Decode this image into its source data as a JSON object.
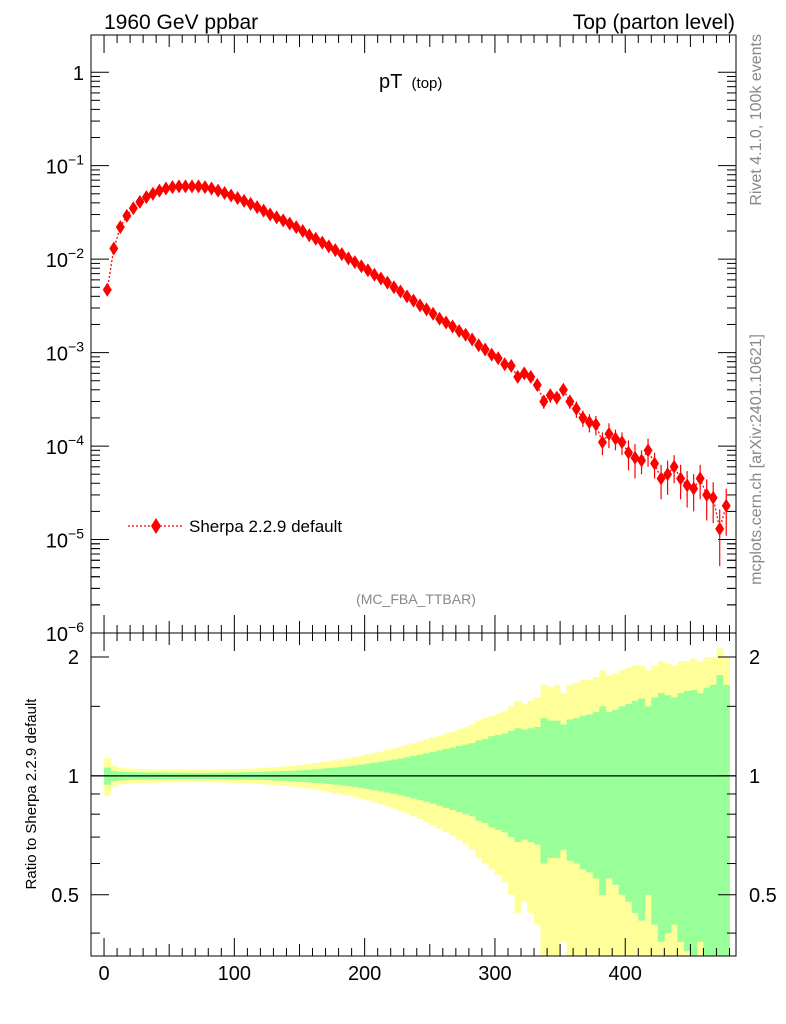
{
  "header": {
    "left": "1960 GeV ppbar",
    "right": "Top (parton level)"
  },
  "side_labels": {
    "rivet": "Rivet 4.1.0,  100k events",
    "mcplots": "mcplots.cern.ch [arXiv:2401.10621]"
  },
  "analysis_label": "(MC_FBA_TTBAR)",
  "colors": {
    "mc": "#ff0000",
    "band_inner": "#99ff99",
    "band_outer": "#ffff99",
    "ref_line": "#000000"
  },
  "chart_data": [
    {
      "type": "scatter",
      "panel": "main",
      "title": "pT",
      "title_sub": "(top)",
      "yscale": "log",
      "xlim": [
        -10,
        485
      ],
      "ylim": [
        1e-06,
        2.5
      ],
      "y_ticks": [
        {
          "value": 1,
          "label": "1",
          "sup": ""
        },
        {
          "value": 0.1,
          "label": "10",
          "sup": "−1"
        },
        {
          "value": 0.01,
          "label": "10",
          "sup": "−2"
        },
        {
          "value": 0.001,
          "label": "10",
          "sup": "−3"
        },
        {
          "value": 0.0001,
          "label": "10",
          "sup": "−4"
        },
        {
          "value": 1e-05,
          "label": "10",
          "sup": "−5"
        },
        {
          "value": 1e-06,
          "label": "10",
          "sup": "−6"
        }
      ],
      "legend": {
        "label": "Sherpa 2.2.9 default",
        "position": "bottom-left"
      },
      "series": [
        {
          "name": "Sherpa 2.2.9 default",
          "x": [
            2.5,
            7.5,
            12.5,
            17.5,
            22.5,
            27.5,
            32.5,
            37.5,
            42.5,
            47.5,
            52.5,
            57.5,
            62.5,
            67.5,
            72.5,
            77.5,
            82.5,
            87.5,
            92.5,
            97.5,
            102.5,
            107.5,
            112.5,
            117.5,
            122.5,
            127.5,
            132.5,
            137.5,
            142.5,
            147.5,
            152.5,
            157.5,
            162.5,
            167.5,
            172.5,
            177.5,
            182.5,
            187.5,
            192.5,
            197.5,
            202.5,
            207.5,
            212.5,
            217.5,
            222.5,
            227.5,
            232.5,
            237.5,
            242.5,
            247.5,
            252.5,
            257.5,
            262.5,
            267.5,
            272.5,
            277.5,
            282.5,
            287.5,
            292.5,
            297.5,
            302.5,
            307.5,
            312.5,
            317.5,
            322.5,
            327.5,
            332.5,
            337.5,
            342.5,
            347.5,
            352.5,
            357.5,
            362.5,
            367.5,
            372.5,
            377.5,
            382.5,
            387.5,
            392.5,
            397.5,
            402.5,
            407.5,
            412.5,
            417.5,
            422.5,
            427.5,
            432.5,
            437.5,
            442.5,
            447.5,
            452.5,
            457.5,
            462.5,
            467.5,
            472.5,
            477.5
          ],
          "y": [
            0.0047,
            0.013,
            0.022,
            0.029,
            0.035,
            0.041,
            0.046,
            0.05,
            0.054,
            0.057,
            0.059,
            0.06,
            0.06,
            0.06,
            0.06,
            0.059,
            0.057,
            0.054,
            0.051,
            0.048,
            0.045,
            0.042,
            0.039,
            0.036,
            0.033,
            0.03,
            0.028,
            0.026,
            0.024,
            0.022,
            0.02,
            0.018,
            0.0165,
            0.015,
            0.0137,
            0.0125,
            0.0113,
            0.0102,
            0.0093,
            0.0084,
            0.0076,
            0.0068,
            0.0062,
            0.0056,
            0.005,
            0.0045,
            0.004,
            0.0036,
            0.0032,
            0.0029,
            0.0026,
            0.0023,
            0.0021,
            0.0019,
            0.0017,
            0.00155,
            0.00138,
            0.0012,
            0.00108,
            0.00095,
            0.00087,
            0.00075,
            0.00072,
            0.00055,
            0.0006,
            0.00055,
            0.00045,
            0.0003,
            0.00035,
            0.00033,
            0.0004,
            0.0003,
            0.00025,
            0.0002,
            0.00018,
            0.00017,
            0.00011,
            0.000135,
            0.00012,
            0.00011,
            8.5e-05,
            7.5e-05,
            7e-05,
            9e-05,
            6.5e-05,
            4.5e-05,
            5e-05,
            6e-05,
            4.5e-05,
            3.8e-05,
            3.5e-05,
            4.5e-05,
            3e-05,
            2.8e-05,
            1.3e-05,
            2.3e-05
          ],
          "yerr": [
            0.0002,
            0.0004,
            0.0005,
            0.0006,
            0.0006,
            0.0007,
            0.0007,
            0.0007,
            0.0008,
            0.0008,
            0.0008,
            0.0008,
            0.0008,
            0.0008,
            0.0008,
            0.0008,
            0.0008,
            0.0007,
            0.0007,
            0.0007,
            0.0007,
            0.0006,
            0.0006,
            0.0006,
            0.0006,
            0.0005,
            0.0005,
            0.0005,
            0.0005,
            0.0004,
            0.0004,
            0.0004,
            0.0004,
            0.0004,
            0.0003,
            0.0003,
            0.0003,
            0.0003,
            0.0003,
            0.0003,
            0.0002,
            0.0002,
            0.0002,
            0.0002,
            0.0002,
            0.0002,
            0.0002,
            0.00018,
            0.00017,
            0.00016,
            0.00015,
            0.00014,
            0.00013,
            0.00012,
            0.00012,
            0.00011,
            0.0001,
            0.0001,
            9e-05,
            9e-05,
            8e-05,
            8e-05,
            8e-05,
            7e-05,
            7e-05,
            7e-05,
            6e-05,
            5e-05,
            6e-05,
            5e-05,
            6e-05,
            5e-05,
            5e-05,
            4e-05,
            4e-05,
            4e-05,
            3e-05,
            4e-05,
            3e-05,
            3e-05,
            3e-05,
            3e-05,
            2e-05,
            3e-05,
            2e-05,
            1.8e-05,
            2e-05,
            2e-05,
            1.8e-05,
            1.6e-05,
            1.5e-05,
            1.8e-05,
            1.4e-05,
            1.3e-05,
            8e-06,
            1.2e-05
          ]
        }
      ]
    },
    {
      "type": "area",
      "panel": "ratio",
      "ylabel": "Ratio to Sherpa 2.2.9 default",
      "xlim": [
        -10,
        485
      ],
      "ylim": [
        0.35,
        2.3
      ],
      "x_ticks": [
        0,
        100,
        200,
        300,
        400
      ],
      "y_ticks": [
        0.5,
        1,
        2
      ],
      "reference_line": 1,
      "bin_width": 5,
      "bands": [
        {
          "name": "inner",
          "lo": [
            0.95,
            0.97,
            0.975,
            0.977,
            0.978,
            0.979,
            0.98,
            0.98,
            0.98,
            0.981,
            0.981,
            0.981,
            0.982,
            0.982,
            0.982,
            0.982,
            0.982,
            0.981,
            0.981,
            0.98,
            0.98,
            0.979,
            0.978,
            0.977,
            0.976,
            0.975,
            0.973,
            0.972,
            0.97,
            0.968,
            0.966,
            0.963,
            0.96,
            0.957,
            0.954,
            0.95,
            0.946,
            0.942,
            0.937,
            0.932,
            0.926,
            0.92,
            0.914,
            0.907,
            0.9,
            0.893,
            0.885,
            0.877,
            0.868,
            0.859,
            0.85,
            0.84,
            0.83,
            0.82,
            0.81,
            0.8,
            0.79,
            0.77,
            0.76,
            0.74,
            0.73,
            0.72,
            0.7,
            0.68,
            0.69,
            0.68,
            0.67,
            0.6,
            0.62,
            0.62,
            0.65,
            0.61,
            0.6,
            0.58,
            0.57,
            0.55,
            0.5,
            0.55,
            0.53,
            0.5,
            0.48,
            0.45,
            0.43,
            0.5,
            0.42,
            0.38,
            0.4,
            0.42,
            0.38,
            0.36,
            0.35,
            0.38,
            0.33,
            0.3,
            0.2,
            0.3
          ],
          "hi": [
            1.05,
            1.03,
            1.025,
            1.023,
            1.022,
            1.021,
            1.02,
            1.02,
            1.02,
            1.019,
            1.019,
            1.019,
            1.018,
            1.018,
            1.018,
            1.018,
            1.018,
            1.019,
            1.019,
            1.02,
            1.02,
            1.021,
            1.022,
            1.023,
            1.024,
            1.025,
            1.027,
            1.028,
            1.03,
            1.032,
            1.034,
            1.037,
            1.04,
            1.043,
            1.046,
            1.05,
            1.054,
            1.058,
            1.063,
            1.068,
            1.074,
            1.08,
            1.086,
            1.093,
            1.1,
            1.107,
            1.115,
            1.123,
            1.132,
            1.141,
            1.15,
            1.16,
            1.17,
            1.18,
            1.19,
            1.2,
            1.21,
            1.23,
            1.24,
            1.26,
            1.27,
            1.28,
            1.3,
            1.32,
            1.31,
            1.32,
            1.33,
            1.4,
            1.38,
            1.38,
            1.35,
            1.39,
            1.4,
            1.42,
            1.43,
            1.45,
            1.5,
            1.45,
            1.47,
            1.5,
            1.52,
            1.55,
            1.57,
            1.5,
            1.58,
            1.62,
            1.6,
            1.58,
            1.62,
            1.64,
            1.65,
            1.62,
            1.67,
            1.7,
            1.8,
            1.7
          ]
        },
        {
          "name": "outer",
          "lo": [
            0.89,
            0.94,
            0.952,
            0.955,
            0.957,
            0.959,
            0.96,
            0.961,
            0.962,
            0.963,
            0.963,
            0.963,
            0.964,
            0.964,
            0.964,
            0.964,
            0.963,
            0.963,
            0.962,
            0.961,
            0.96,
            0.958,
            0.957,
            0.955,
            0.952,
            0.95,
            0.947,
            0.944,
            0.941,
            0.937,
            0.933,
            0.928,
            0.923,
            0.917,
            0.911,
            0.905,
            0.898,
            0.891,
            0.883,
            0.875,
            0.866,
            0.857,
            0.847,
            0.837,
            0.826,
            0.815,
            0.803,
            0.79,
            0.777,
            0.763,
            0.75,
            0.735,
            0.72,
            0.705,
            0.69,
            0.67,
            0.65,
            0.62,
            0.6,
            0.58,
            0.56,
            0.54,
            0.5,
            0.45,
            0.48,
            0.45,
            0.42,
            0.3,
            0.32,
            0.3,
            0.38,
            0.3,
            0.28,
            0.25,
            0.25,
            0.22,
            0.15,
            0.2,
            0.18,
            0.15,
            0.12,
            0.1,
            0.1,
            0.15,
            0.1,
            0.05,
            0.08,
            0.1,
            0.05,
            0.05,
            0.02,
            0.05,
            0.0,
            0.0,
            0.0,
            0.0
          ],
          "hi": [
            1.11,
            1.06,
            1.048,
            1.045,
            1.043,
            1.041,
            1.04,
            1.039,
            1.038,
            1.037,
            1.037,
            1.037,
            1.036,
            1.036,
            1.036,
            1.036,
            1.037,
            1.037,
            1.038,
            1.039,
            1.04,
            1.042,
            1.043,
            1.045,
            1.048,
            1.05,
            1.053,
            1.056,
            1.059,
            1.063,
            1.067,
            1.072,
            1.077,
            1.083,
            1.089,
            1.095,
            1.102,
            1.109,
            1.117,
            1.125,
            1.134,
            1.143,
            1.153,
            1.163,
            1.174,
            1.185,
            1.197,
            1.21,
            1.223,
            1.237,
            1.25,
            1.265,
            1.28,
            1.295,
            1.31,
            1.33,
            1.35,
            1.38,
            1.4,
            1.42,
            1.44,
            1.46,
            1.5,
            1.55,
            1.52,
            1.55,
            1.58,
            1.7,
            1.68,
            1.7,
            1.62,
            1.7,
            1.72,
            1.75,
            1.75,
            1.78,
            1.85,
            1.8,
            1.82,
            1.85,
            1.88,
            1.9,
            1.9,
            1.85,
            1.9,
            1.95,
            1.92,
            1.9,
            1.95,
            1.95,
            1.98,
            1.95,
            2.0,
            2.0,
            2.1,
            2.0
          ]
        }
      ]
    }
  ]
}
